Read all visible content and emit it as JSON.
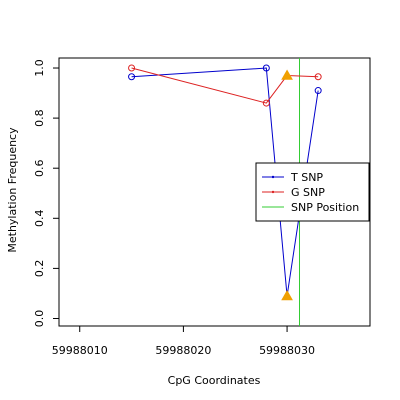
{
  "chart_data": {
    "type": "line",
    "title": "",
    "xlabel": "CpG Coordinates",
    "ylabel": "Methylation Frequency",
    "xlim": [
      59988008,
      59988038
    ],
    "ylim": [
      -0.03,
      1.04
    ],
    "x_ticks": [
      59988010,
      59988020,
      59988030
    ],
    "x_tick_labels": [
      "59988010",
      "59988020",
      "59988030"
    ],
    "y_ticks": [
      0.0,
      0.2,
      0.4,
      0.6,
      0.8,
      1.0
    ],
    "y_tick_labels": [
      "0.0",
      "0.2",
      "0.4",
      "0.6",
      "0.8",
      "1.0"
    ],
    "grid": false,
    "legend_position": "right",
    "series": [
      {
        "name": "T SNP",
        "color": "#0000cc",
        "x": [
          59988015,
          59988028,
          59988030,
          59988033
        ],
        "y": [
          0.965,
          1.0,
          0.09,
          0.91
        ],
        "snp_marker_index": 2
      },
      {
        "name": "G SNP",
        "color": "#dd2222",
        "x": [
          59988015,
          59988028,
          59988030,
          59988033
        ],
        "y": [
          1.0,
          0.86,
          0.97,
          0.965
        ],
        "snp_marker_index": 2
      }
    ],
    "snp_position": {
      "name": "SNP Position",
      "x": 59988031.2,
      "color": "#33cc33"
    },
    "snp_marker_color": "#f0a000"
  }
}
